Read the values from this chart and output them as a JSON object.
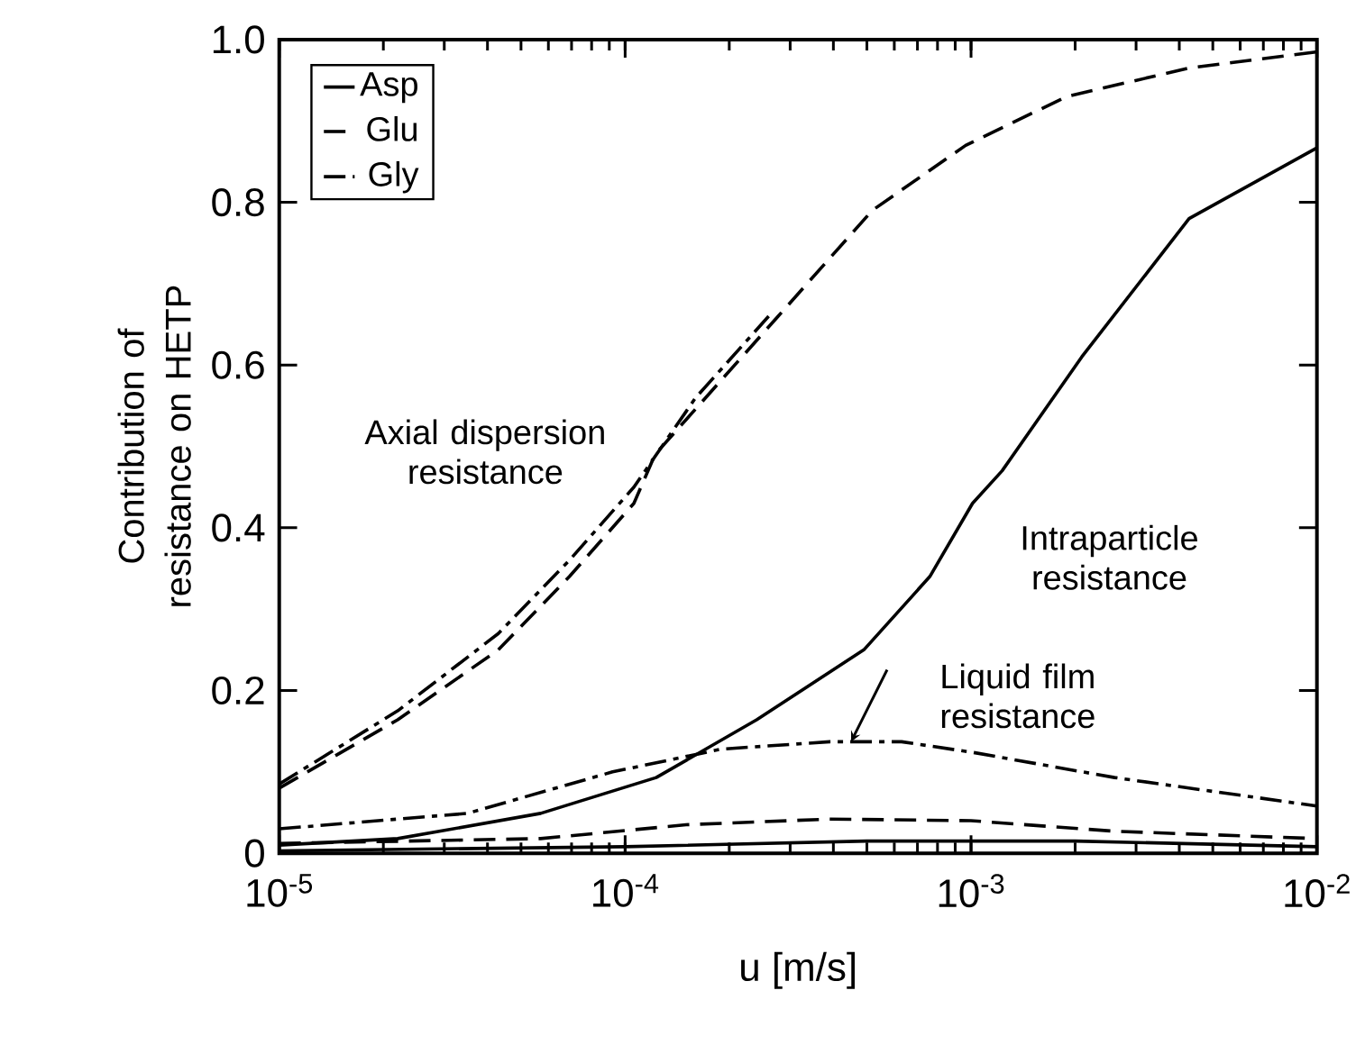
{
  "chart_data": {
    "type": "line",
    "xlabel": "u  [m/s]",
    "ylabel": "Contribution of resistance on HETP",
    "log": "x",
    "xlim": [
      1e-05,
      0.01
    ],
    "ylim": [
      0,
      1.0
    ],
    "xticks": [
      {
        "value": 1e-05,
        "label": "10$^{-5}$"
      },
      {
        "value": 0.0001,
        "label": "10$^{-4}$"
      },
      {
        "value": 0.001,
        "label": "10$^{-3}$"
      },
      {
        "value": 0.01,
        "label": "10$^{-2}$"
      }
    ],
    "yticks": [
      {
        "value": 0,
        "label": "0"
      },
      0.2,
      0.4,
      0.6,
      0.8,
      {
        "value": 1.0,
        "label": "1.0"
      }
    ],
    "legend": "top left",
    "grid": false,
    "marker": "none",
    "series": [
      {
        "name": "Asp",
        "color": "#000000",
        "line_style": "solid",
        "x": [
          1e-05,
          2.2e-05,
          5.7e-05,
          0.000123,
          0.00024,
          0.00049,
          0.00076,
          0.00101,
          0.00123,
          0.00209,
          0.00427,
          0.01
        ],
        "values": [
          0.01,
          0.018,
          0.049,
          0.093,
          0.164,
          0.25,
          0.34,
          0.43,
          0.47,
          0.61,
          0.78,
          0.867
        ]
      },
      {
        "name": "Glu",
        "color": "#000000",
        "line_style": "dashed",
        "x": [
          1e-05,
          2.2e-05,
          4.3e-05,
          6.9e-05,
          0.000106,
          0.000122,
          0.000277,
          0.000518,
          0.000965,
          0.00189,
          0.00427,
          0.01
        ],
        "values": [
          0.08,
          0.164,
          0.25,
          0.34,
          0.43,
          0.49,
          0.66,
          0.79,
          0.87,
          0.93,
          0.965,
          0.985
        ]
      },
      {
        "name": "Gly",
        "color": "#000000",
        "line_style": "dashdot",
        "x": [
          1e-05,
          2.2e-05,
          4.3e-05,
          6.9e-05,
          0.000106,
          0.00016,
          0.00026
        ],
        "values": [
          0.085,
          0.175,
          0.27,
          0.36,
          0.45,
          0.56,
          0.66
        ]
      },
      {
        "color": "#000000",
        "line_style": "dashdot",
        "x": [
          1e-05,
          3.5e-05,
          9.2e-05,
          0.00019,
          0.00039,
          0.00063,
          0.00101,
          0.0026,
          0.01
        ],
        "values": [
          0.03,
          0.049,
          0.1,
          0.128,
          0.137,
          0.137,
          0.124,
          0.093,
          0.058
        ]
      },
      {
        "color": "#000000",
        "line_style": "dashed",
        "x": [
          1e-05,
          5.7e-05,
          0.00015,
          0.00039,
          0.001,
          0.0026,
          0.01
        ],
        "values": [
          0.012,
          0.018,
          0.035,
          0.042,
          0.04,
          0.027,
          0.018
        ]
      },
      {
        "color": "#000000",
        "line_style": "solid",
        "x": [
          1e-05,
          0.0001,
          0.0005,
          0.002,
          0.01
        ],
        "values": [
          0.003,
          0.008,
          0.015,
          0.015,
          0.008
        ]
      }
    ],
    "annotations": [
      "Axial dispersion resistance",
      "Intraparticle resistance",
      {
        "text": "Liquid film resistance",
        "x": 0.00045,
        "y": 0.137
      }
    ]
  }
}
